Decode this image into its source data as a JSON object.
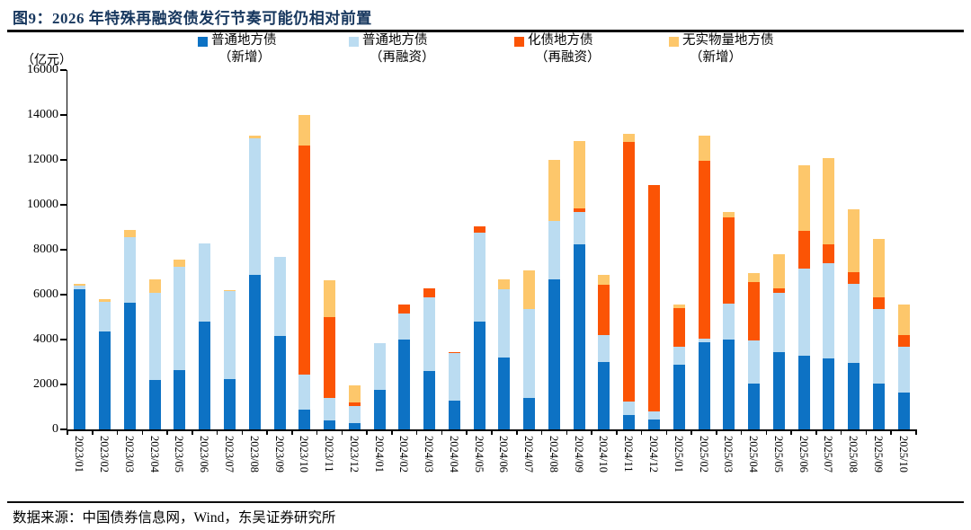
{
  "title": "图9：2026 年特殊再融资债发行节奏可能仍相对前置",
  "unit_label": "（亿元）",
  "source": "数据来源：中国债券信息网，Wind，东吴证券研究所",
  "colors": {
    "title_navy": "#17375E",
    "axis_black": "#000000",
    "new_general": "#0D72C4",
    "refi_general": "#BBDCF1",
    "refi_huazhai": "#FB5405",
    "new_nonphysical": "#FDC76B"
  },
  "legend": [
    {
      "label": "普通地方债",
      "sub": "（新增）",
      "color": "#0D72C4"
    },
    {
      "label": "普通地方债",
      "sub": "（再融资）",
      "color": "#BBDCF1"
    },
    {
      "label": "化债地方债",
      "sub": "（再融资）",
      "color": "#FB5405"
    },
    {
      "label": "无实物量地方债",
      "sub": "（新增）",
      "color": "#FDC76B"
    }
  ],
  "chart_data": {
    "type": "bar",
    "stacked": true,
    "title": "2026 年特殊再融资债发行节奏可能仍相对前置",
    "ylabel": "（亿元）",
    "xlabel": "",
    "ylim": [
      0,
      16000
    ],
    "ytick_step": 2000,
    "grid": false,
    "legend_position": "top",
    "categories": [
      "2023/01",
      "2023/02",
      "2023/03",
      "2023/04",
      "2023/05",
      "2023/06",
      "2023/07",
      "2023/08",
      "2023/09",
      "2023/10",
      "2023/11",
      "2023/12",
      "2024/01",
      "2024/02",
      "2024/03",
      "2024/04",
      "2024/05",
      "2024/06",
      "2024/07",
      "2024/08",
      "2024/09",
      "2024/10",
      "2024/11",
      "2024/12",
      "2025/01",
      "2025/02",
      "2025/03",
      "2025/04",
      "2025/05",
      "2025/06",
      "2025/07",
      "2025/08",
      "2025/09",
      "2025/10"
    ],
    "series": [
      {
        "name": "普通地方债（新增）",
        "color": "#0D72C4",
        "values": [
          6250,
          4350,
          5650,
          2200,
          2650,
          4800,
          2250,
          6900,
          4150,
          900,
          400,
          300,
          1750,
          4000,
          2600,
          1300,
          4800,
          3200,
          1400,
          6700,
          8250,
          3000,
          650,
          450,
          2900,
          3900,
          4000,
          2050,
          3450,
          3300,
          3150,
          2950,
          2050,
          1650
        ]
      },
      {
        "name": "普通地方债（再融资）",
        "color": "#BBDCF1",
        "values": [
          150,
          1350,
          2900,
          3900,
          4600,
          3500,
          3900,
          6050,
          3550,
          1550,
          1000,
          750,
          2100,
          1150,
          3300,
          2100,
          3950,
          3050,
          3950,
          2600,
          1450,
          1200,
          600,
          350,
          800,
          150,
          1600,
          1900,
          2650,
          3850,
          4250,
          3550,
          3300,
          2050
        ]
      },
      {
        "name": "化债地方债（再融资）",
        "color": "#FB5405",
        "values": [
          0,
          0,
          0,
          0,
          0,
          0,
          0,
          0,
          0,
          10200,
          3600,
          150,
          0,
          400,
          400,
          50,
          300,
          0,
          0,
          0,
          150,
          2250,
          11550,
          10100,
          1700,
          7900,
          3850,
          2600,
          200,
          1700,
          850,
          500,
          550,
          500
        ]
      },
      {
        "name": "无实物量地方债（新增）",
        "color": "#FDC76B",
        "values": [
          100,
          100,
          350,
          600,
          300,
          0,
          50,
          150,
          0,
          1350,
          1650,
          750,
          0,
          0,
          0,
          0,
          0,
          450,
          1750,
          2700,
          3000,
          450,
          350,
          0,
          150,
          1150,
          250,
          400,
          1500,
          2900,
          3850,
          2800,
          2600,
          1350
        ]
      }
    ]
  }
}
